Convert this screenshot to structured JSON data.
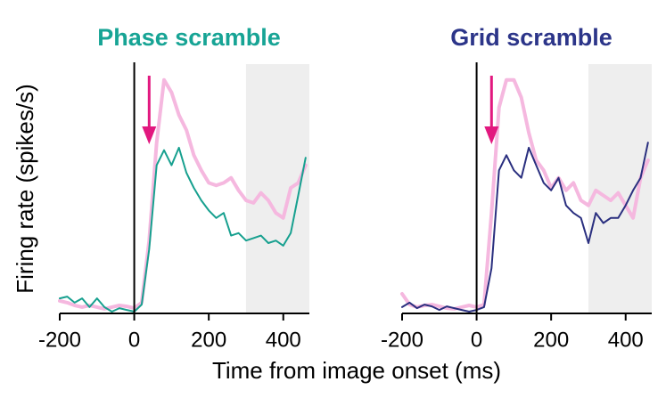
{
  "xlabel": "Time from image onset (ms)",
  "ylabel": "Firing rate (spikes/s)",
  "chart_data": [
    {
      "type": "line",
      "title": "Phase scramble",
      "title_color": "#17a495",
      "x": [
        -200,
        -180,
        -160,
        -140,
        -120,
        -100,
        -80,
        -60,
        -40,
        -20,
        0,
        20,
        40,
        60,
        80,
        100,
        120,
        140,
        160,
        180,
        200,
        220,
        240,
        260,
        280,
        300,
        320,
        340,
        360,
        380,
        400,
        420,
        440,
        460
      ],
      "series": [
        {
          "color": "#f5b8df",
          "values": [
            5,
            4.3,
            3.2,
            2.5,
            3.2,
            2.5,
            1.8,
            2.5,
            3.2,
            2.8,
            2.1,
            4.3,
            29,
            68,
            93,
            88,
            79,
            73,
            63,
            57,
            52,
            51,
            52,
            54,
            49,
            45,
            44,
            48,
            45,
            40,
            38,
            50,
            52,
            59
          ]
        },
        {
          "color": "#17a08f",
          "values": [
            6,
            6.7,
            4.3,
            6,
            2.5,
            6,
            2.5,
            0.7,
            2.1,
            1.4,
            0.7,
            3.5,
            25.5,
            59,
            65,
            59,
            66,
            56,
            50,
            45,
            41,
            38,
            40,
            31,
            32,
            29,
            30,
            31,
            28,
            29,
            27,
            32,
            47,
            62
          ]
        }
      ],
      "xlim": [
        -200,
        470
      ],
      "xticks": [
        -200,
        0,
        200,
        400
      ],
      "ylim": [
        0,
        100
      ],
      "shade": [
        300,
        470
      ],
      "arrow_x": 40,
      "arrow_color": "#e2187f"
    },
    {
      "type": "line",
      "title": "Grid scramble",
      "title_color": "#2c3589",
      "x": [
        -200,
        -180,
        -160,
        -140,
        -120,
        -100,
        -80,
        -60,
        -40,
        -20,
        0,
        20,
        40,
        60,
        80,
        100,
        120,
        140,
        160,
        180,
        200,
        220,
        240,
        260,
        280,
        300,
        320,
        340,
        360,
        380,
        400,
        420,
        440,
        460
      ],
      "series": [
        {
          "color": "#f5b8df",
          "values": [
            7.8,
            3.5,
            2.5,
            3.2,
            3.5,
            2.8,
            2.1,
            1.8,
            2.5,
            3.2,
            2.5,
            3.5,
            40,
            82,
            93,
            93,
            86,
            72,
            61,
            57,
            50,
            54,
            49,
            52,
            45,
            43,
            49,
            47,
            45,
            48,
            43,
            38,
            54,
            61
          ]
        },
        {
          "color": "#2a2f7f",
          "values": [
            2.5,
            4.3,
            2.1,
            3.5,
            2.8,
            1.4,
            2.8,
            2.1,
            1.4,
            0.7,
            1.4,
            2.5,
            18,
            57,
            63,
            57,
            54,
            66,
            59,
            52,
            49,
            54,
            43,
            40,
            38,
            28,
            40,
            36,
            38,
            38,
            43,
            49,
            54,
            68
          ]
        }
      ],
      "xlim": [
        -200,
        470
      ],
      "xticks": [
        -200,
        0,
        200,
        400
      ],
      "ylim": [
        0,
        100
      ],
      "shade": [
        300,
        470
      ],
      "arrow_x": 40,
      "arrow_color": "#e2187f"
    }
  ]
}
